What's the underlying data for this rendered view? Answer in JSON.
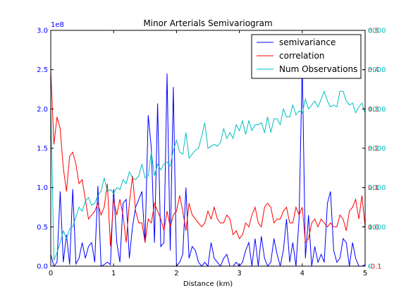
{
  "chart_data": {
    "type": "line",
    "title": "Minor Arterials Semivariogram",
    "xlabel": "Distance (km)",
    "xlim": [
      0,
      5
    ],
    "x_ticks": [
      "0",
      "1",
      "2",
      "3",
      "4",
      "5"
    ],
    "grid": false,
    "legend_position": "top-right",
    "axes": {
      "left": {
        "ylim": [
          0,
          3.0
        ],
        "ticks": [
          "0.0",
          "0.5",
          "1.0",
          "1.5",
          "2.0",
          "2.5",
          "3.0"
        ],
        "offset_label": "1e8",
        "color": "#0000ff"
      },
      "right_red": {
        "ylim": [
          -0.1,
          0.5
        ],
        "ticks": [
          "-0.1",
          "0.0",
          "0.1",
          "0.2",
          "0.3",
          "0.4",
          "0.5"
        ],
        "color": "#ff0000"
      },
      "right_cyan": {
        "ylim": [
          0,
          6000
        ],
        "ticks": [
          "0",
          "1000",
          "2000",
          "3000",
          "4000",
          "5000",
          "6000"
        ],
        "color": "#00bfbf"
      }
    },
    "series": [
      {
        "name": "semivariance",
        "color": "#0000ff",
        "axis": "left",
        "x": [
          0.0,
          0.05,
          0.1,
          0.15,
          0.2,
          0.25,
          0.3,
          0.35,
          0.4,
          0.45,
          0.5,
          0.55,
          0.6,
          0.65,
          0.7,
          0.75,
          0.8,
          0.85,
          0.9,
          0.95,
          1.0,
          1.05,
          1.1,
          1.15,
          1.2,
          1.25,
          1.3,
          1.35,
          1.4,
          1.45,
          1.5,
          1.55,
          1.6,
          1.65,
          1.7,
          1.75,
          1.8,
          1.85,
          1.9,
          1.95,
          2.0,
          2.05,
          2.1,
          2.15,
          2.2,
          2.25,
          2.3,
          2.35,
          2.4,
          2.45,
          2.5,
          2.55,
          2.6,
          2.65,
          2.7,
          2.75,
          2.8,
          2.85,
          2.9,
          2.95,
          3.0,
          3.05,
          3.1,
          3.15,
          3.2,
          3.25,
          3.3,
          3.35,
          3.4,
          3.45,
          3.5,
          3.55,
          3.6,
          3.65,
          3.7,
          3.75,
          3.8,
          3.85,
          3.9,
          3.95,
          4.0,
          4.05,
          4.1,
          4.15,
          4.2,
          4.25,
          4.3,
          4.35,
          4.4,
          4.45,
          4.5,
          4.55,
          4.6,
          4.65,
          4.7,
          4.75,
          4.8,
          4.85,
          4.9,
          4.95,
          5.0
        ],
        "values": [
          0.15,
          0.0,
          0.05,
          0.95,
          0.05,
          0.4,
          0.02,
          0.98,
          0.03,
          0.1,
          0.3,
          0.1,
          0.25,
          0.3,
          0.05,
          1.02,
          0.0,
          0.02,
          0.05,
          0.02,
          0.98,
          0.3,
          0.05,
          0.8,
          0.85,
          0.1,
          0.5,
          0.75,
          0.85,
          0.95,
          0.3,
          1.92,
          1.5,
          0.3,
          2.07,
          0.25,
          0.3,
          2.45,
          0.2,
          2.28,
          0.0,
          0.05,
          0.15,
          1.0,
          0.1,
          0.25,
          0.2,
          0.05,
          0.0,
          0.05,
          0.0,
          0.3,
          0.1,
          0.05,
          0.0,
          0.1,
          0.15,
          0.0,
          0.0,
          0.05,
          0.0,
          0.05,
          0.2,
          0.3,
          0.0,
          0.35,
          0.0,
          0.38,
          0.1,
          0.0,
          0.05,
          0.35,
          0.15,
          0.0,
          0.2,
          0.6,
          0.05,
          0.3,
          0.0,
          0.6,
          2.58,
          0.1,
          0.65,
          0.0,
          0.25,
          0.05,
          0.15,
          0.05,
          0.8,
          0.95,
          0.2,
          0.05,
          0.1,
          0.35,
          0.3,
          0.0,
          0.3,
          0.1,
          0.0,
          0.0,
          0.02
        ]
      },
      {
        "name": "correlation",
        "color": "#ff0000",
        "axis": "right_red",
        "x": [
          0.0,
          0.05,
          0.1,
          0.15,
          0.2,
          0.25,
          0.3,
          0.35,
          0.4,
          0.45,
          0.5,
          0.55,
          0.6,
          0.65,
          0.7,
          0.75,
          0.8,
          0.85,
          0.9,
          0.95,
          1.0,
          1.05,
          1.1,
          1.15,
          1.2,
          1.25,
          1.3,
          1.35,
          1.4,
          1.45,
          1.5,
          1.55,
          1.6,
          1.65,
          1.7,
          1.75,
          1.8,
          1.85,
          1.9,
          1.95,
          2.0,
          2.05,
          2.1,
          2.15,
          2.2,
          2.25,
          2.3,
          2.35,
          2.4,
          2.45,
          2.5,
          2.55,
          2.6,
          2.65,
          2.7,
          2.75,
          2.8,
          2.85,
          2.9,
          2.95,
          3.0,
          3.05,
          3.1,
          3.15,
          3.2,
          3.25,
          3.3,
          3.35,
          3.4,
          3.45,
          3.5,
          3.55,
          3.6,
          3.65,
          3.7,
          3.75,
          3.8,
          3.85,
          3.9,
          3.95,
          4.0,
          4.05,
          4.1,
          4.15,
          4.2,
          4.25,
          4.3,
          4.35,
          4.4,
          4.45,
          4.5,
          4.55,
          4.6,
          4.65,
          4.7,
          4.75,
          4.8,
          4.85,
          4.9,
          4.95,
          5.0
        ],
        "values": [
          0.4,
          0.21,
          0.28,
          0.25,
          0.15,
          0.09,
          0.18,
          0.19,
          0.16,
          0.11,
          0.12,
          0.07,
          0.02,
          0.03,
          0.04,
          0.06,
          0.03,
          0.05,
          0.11,
          -0.05,
          0.07,
          0.03,
          0.07,
          0.03,
          -0.04,
          0.06,
          0.13,
          0.04,
          0.01,
          0.01,
          -0.04,
          0.02,
          0.01,
          0.06,
          0.04,
          0.02,
          -0.01,
          0.04,
          0.0,
          0.03,
          0.04,
          0.08,
          0.04,
          -0.01,
          0.06,
          0.03,
          0.02,
          0.01,
          0.0,
          0.01,
          0.04,
          0.02,
          0.05,
          0.02,
          0.01,
          0.01,
          0.03,
          0.02,
          -0.02,
          -0.01,
          -0.03,
          -0.02,
          0.01,
          0.0,
          0.03,
          0.05,
          0.01,
          0.0,
          0.05,
          0.06,
          0.05,
          0.01,
          0.02,
          0.02,
          0.04,
          0.05,
          0.01,
          0.01,
          0.05,
          0.03,
          0.05,
          -0.04,
          -0.03,
          0.01,
          0.02,
          0.0,
          0.02,
          0.01,
          0.0,
          0.01,
          0.0,
          0.0,
          0.03,
          0.02,
          -0.01,
          0.04,
          0.05,
          0.07,
          0.02,
          0.08,
          0.0
        ]
      },
      {
        "name": "Num Observations",
        "color": "#00bfbf",
        "axis": "right_cyan",
        "x": [
          0.0,
          0.05,
          0.1,
          0.15,
          0.2,
          0.25,
          0.3,
          0.35,
          0.4,
          0.45,
          0.5,
          0.55,
          0.6,
          0.65,
          0.7,
          0.75,
          0.8,
          0.85,
          0.9,
          0.95,
          1.0,
          1.05,
          1.1,
          1.15,
          1.2,
          1.25,
          1.3,
          1.35,
          1.4,
          1.45,
          1.5,
          1.55,
          1.6,
          1.65,
          1.7,
          1.75,
          1.8,
          1.85,
          1.9,
          1.95,
          2.0,
          2.05,
          2.1,
          2.15,
          2.2,
          2.25,
          2.3,
          2.35,
          2.4,
          2.45,
          2.5,
          2.55,
          2.6,
          2.65,
          2.7,
          2.75,
          2.8,
          2.85,
          2.9,
          2.95,
          3.0,
          3.05,
          3.1,
          3.15,
          3.2,
          3.25,
          3.3,
          3.35,
          3.4,
          3.45,
          3.5,
          3.55,
          3.6,
          3.65,
          3.7,
          3.75,
          3.8,
          3.85,
          3.9,
          3.95,
          4.0,
          4.05,
          4.1,
          4.15,
          4.2,
          4.25,
          4.3,
          4.35,
          4.4,
          4.45,
          4.5,
          4.55,
          4.6,
          4.65,
          4.7,
          4.75,
          4.8,
          4.85,
          4.9,
          4.95,
          5.0
        ],
        "values": [
          4200,
          150,
          350,
          600,
          900,
          700,
          950,
          1000,
          1250,
          1500,
          1400,
          1650,
          1750,
          1550,
          1600,
          1800,
          1900,
          2250,
          1900,
          1950,
          1850,
          2000,
          1950,
          2200,
          2100,
          2400,
          2250,
          2200,
          2300,
          2600,
          2250,
          2300,
          2900,
          2300,
          2600,
          2450,
          2600,
          2650,
          2550,
          2950,
          3200,
          2900,
          2850,
          3400,
          2750,
          2850,
          2950,
          3000,
          3300,
          3650,
          3000,
          3050,
          3100,
          3050,
          3150,
          3500,
          3250,
          3400,
          3250,
          3600,
          3450,
          3700,
          3350,
          3700,
          3450,
          3600,
          3600,
          3650,
          3400,
          3800,
          3400,
          3750,
          3750,
          3600,
          4000,
          3800,
          3800,
          4100,
          3850,
          3950,
          3900,
          4250,
          4000,
          4100,
          4200,
          4050,
          4250,
          4450,
          4200,
          4050,
          4100,
          4050,
          4450,
          4450,
          4200,
          4100,
          4150,
          3900,
          4050,
          4150,
          3900
        ]
      }
    ]
  }
}
